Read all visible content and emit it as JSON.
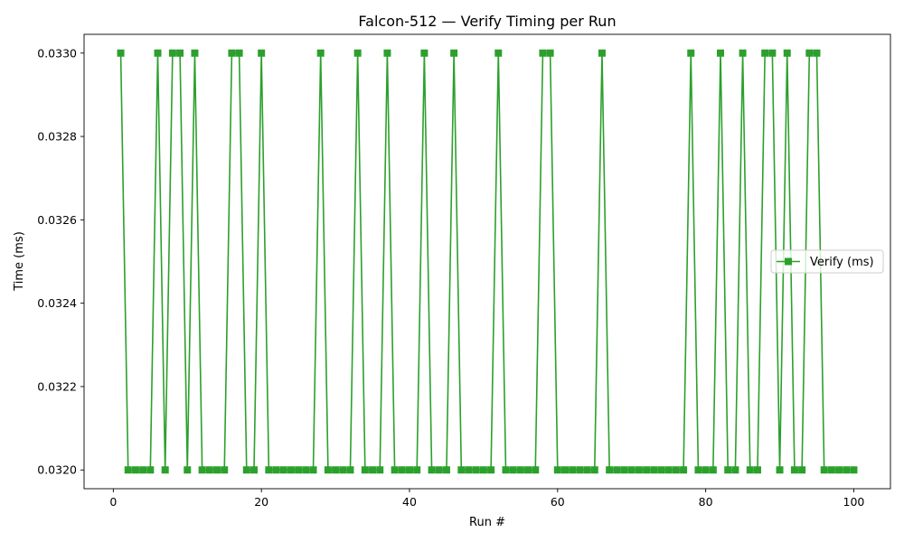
{
  "chart_data": {
    "type": "line",
    "title": "Falcon-512 — Verify Timing per Run",
    "xlabel": "Run #",
    "ylabel": "Time (ms)",
    "xlim": [
      -3.95,
      104.95
    ],
    "ylim": [
      0.031955,
      0.033045
    ],
    "xticks": [
      0,
      20,
      40,
      60,
      80,
      100
    ],
    "yticks": [
      0.032,
      0.0322,
      0.0324,
      0.0326,
      0.0328,
      0.033
    ],
    "ytick_labels": [
      "0.0320",
      "0.0322",
      "0.0324",
      "0.0326",
      "0.0328",
      "0.0330"
    ],
    "grid": false,
    "legend_position": "center-right",
    "color": "#2ca02c",
    "marker": "square",
    "series": [
      {
        "name": "Verify (ms)",
        "x": [
          1,
          2,
          3,
          4,
          5,
          6,
          7,
          8,
          9,
          10,
          11,
          12,
          13,
          14,
          15,
          16,
          17,
          18,
          19,
          20,
          21,
          22,
          23,
          24,
          25,
          26,
          27,
          28,
          29,
          30,
          31,
          32,
          33,
          34,
          35,
          36,
          37,
          38,
          39,
          40,
          41,
          42,
          43,
          44,
          45,
          46,
          47,
          48,
          49,
          50,
          51,
          52,
          53,
          54,
          55,
          56,
          57,
          58,
          59,
          60,
          61,
          62,
          63,
          64,
          65,
          66,
          67,
          68,
          69,
          70,
          71,
          72,
          73,
          74,
          75,
          76,
          77,
          78,
          79,
          80,
          81,
          82,
          83,
          84,
          85,
          86,
          87,
          88,
          89,
          90,
          91,
          92,
          93,
          94,
          95,
          96,
          97,
          98,
          99,
          100
        ],
        "values": [
          0.033,
          0.032,
          0.032,
          0.032,
          0.032,
          0.033,
          0.032,
          0.033,
          0.033,
          0.032,
          0.033,
          0.032,
          0.032,
          0.032,
          0.032,
          0.033,
          0.033,
          0.032,
          0.032,
          0.033,
          0.032,
          0.032,
          0.032,
          0.032,
          0.032,
          0.032,
          0.032,
          0.033,
          0.032,
          0.032,
          0.032,
          0.032,
          0.033,
          0.032,
          0.032,
          0.032,
          0.033,
          0.032,
          0.032,
          0.032,
          0.032,
          0.033,
          0.032,
          0.032,
          0.032,
          0.033,
          0.032,
          0.032,
          0.032,
          0.032,
          0.032,
          0.033,
          0.032,
          0.032,
          0.032,
          0.032,
          0.032,
          0.033,
          0.033,
          0.032,
          0.032,
          0.032,
          0.032,
          0.032,
          0.032,
          0.033,
          0.032,
          0.032,
          0.032,
          0.032,
          0.032,
          0.032,
          0.032,
          0.032,
          0.032,
          0.032,
          0.032,
          0.033,
          0.032,
          0.032,
          0.032,
          0.033,
          0.032,
          0.032,
          0.033,
          0.032,
          0.032,
          0.033,
          0.033,
          0.032,
          0.033,
          0.032,
          0.032,
          0.033,
          0.033,
          0.032,
          0.032,
          0.032,
          0.032,
          0.032
        ]
      }
    ]
  }
}
